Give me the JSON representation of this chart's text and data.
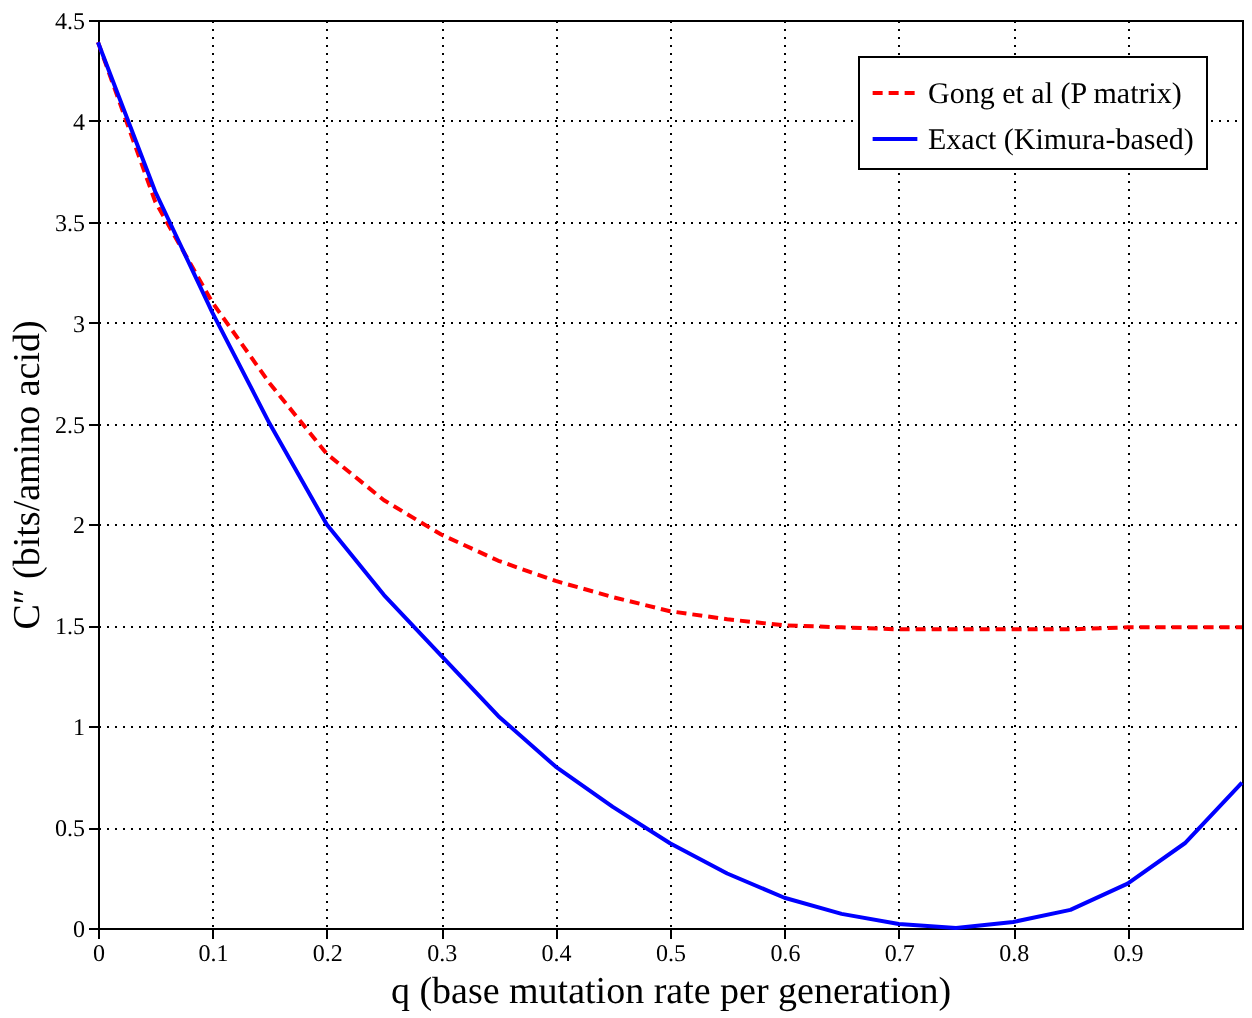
{
  "chart_data": {
    "type": "line",
    "xlabel": "q (base mutation rate per generation)",
    "ylabel": "C″ (bits/amino acid)",
    "x": [
      0,
      0.05,
      0.1,
      0.15,
      0.2,
      0.25,
      0.3,
      0.35,
      0.4,
      0.45,
      0.5,
      0.55,
      0.6,
      0.65,
      0.7,
      0.75,
      0.8,
      0.85,
      0.9,
      0.95,
      1.0
    ],
    "series": [
      {
        "name": "Gong et al (P matrix)",
        "color": "#ff0000",
        "line_style": "dashed",
        "values": [
          4.39,
          3.6,
          3.1,
          2.7,
          2.35,
          2.12,
          1.95,
          1.82,
          1.72,
          1.64,
          1.57,
          1.53,
          1.5,
          1.49,
          1.48,
          1.48,
          1.48,
          1.48,
          1.49,
          1.49,
          1.49
        ]
      },
      {
        "name": "Exact (Kimura-based)",
        "color": "#0000ff",
        "line_style": "solid",
        "values": [
          4.39,
          3.65,
          3.05,
          2.5,
          2.0,
          1.65,
          1.35,
          1.05,
          0.8,
          0.6,
          0.42,
          0.27,
          0.15,
          0.07,
          0.02,
          0.0,
          0.03,
          0.09,
          0.22,
          0.42,
          0.72
        ]
      }
    ],
    "xlim": [
      0,
      1
    ],
    "xticks": [
      0,
      0.1,
      0.2,
      0.3,
      0.4,
      0.5,
      0.6,
      0.7,
      0.8,
      0.9
    ],
    "ylim": [
      0,
      4.5
    ],
    "yticks": [
      0,
      0.5,
      1,
      1.5,
      2,
      2.5,
      3,
      3.5,
      4,
      4.5
    ],
    "grid": true,
    "legend": "top right",
    "marker": "none"
  }
}
